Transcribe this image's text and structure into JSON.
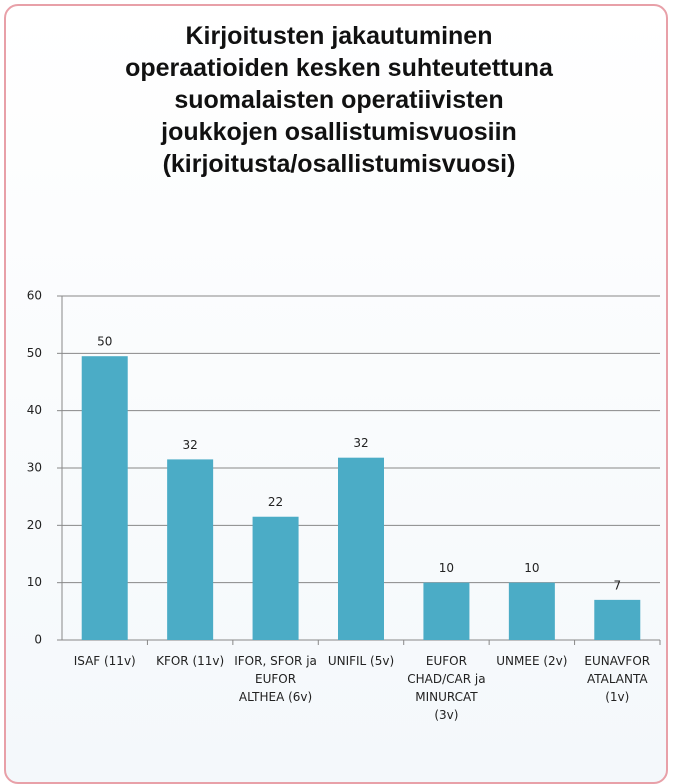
{
  "chart_data": {
    "type": "bar",
    "title": [
      "Kirjoitusten jakautuminen",
      "operaatioiden kesken suhteutettuna",
      "suomalaisten operatiivisten",
      "joukkojen osallistumisvuosiin",
      "(kirjoitusta/osallistumisvuosi)"
    ],
    "categories": [
      "ISAF (11v)",
      "KFOR (11v)",
      "IFOR, SFOR ja EUFOR ALTHEA (6v)",
      "UNIFIL (5v)",
      "EUFOR CHAD/CAR ja MINURCAT (3v)",
      "UNMEE (2v)",
      "EUNAVFOR ATALANTA (1v)"
    ],
    "values": [
      49.5,
      31.5,
      21.5,
      31.8,
      10,
      10,
      7
    ],
    "value_labels": [
      "50",
      "32",
      "22",
      "32",
      "10",
      "10",
      "7"
    ],
    "color": "#4bacc6",
    "ylim": [
      0,
      60
    ],
    "yticks": [
      0,
      10,
      20,
      30,
      40,
      50,
      60
    ],
    "grid": true
  }
}
